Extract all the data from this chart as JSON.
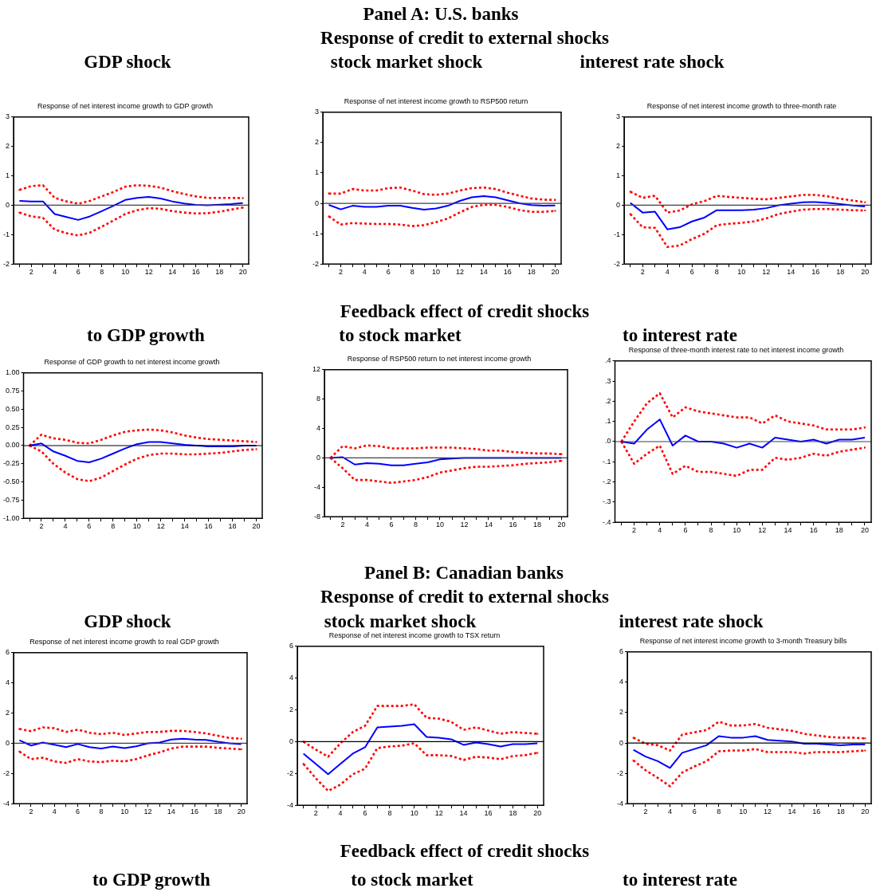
{
  "chart_data": [
    {
      "type": "other",
      "title": "Panel A: U.S. banks",
      "subtitle": "Response of credit to external shocks"
    },
    {
      "type": "line",
      "title": "GDP shock",
      "subtitle": "Response of net interest income growth to GDP growth",
      "categories": [
        null,
        "2",
        null,
        "4",
        null,
        "6",
        null,
        "8",
        null,
        "10",
        null,
        "12",
        null,
        "14",
        null,
        "16",
        null,
        "18",
        null,
        "20"
      ],
      "ylim": [
        -2,
        3
      ],
      "yticks": [
        -2,
        -1,
        0,
        1,
        2,
        3
      ],
      "grid": false,
      "legend": false,
      "marker": "none",
      "ref_lines": [
        {
          "axis": "y",
          "value": 0,
          "color": "#404040"
        }
      ],
      "series": [
        {
          "color": "#0000ff",
          "line_style": "solid",
          "values": [
            0.15,
            0.13,
            0.13,
            -0.3,
            -0.4,
            -0.5,
            -0.38,
            -0.2,
            -0.02,
            0.18,
            0.25,
            0.28,
            0.23,
            0.13,
            0.06,
            0.01,
            0,
            0.02,
            0.04,
            0.07
          ]
        },
        {
          "color": "#ff0000",
          "line_style": "dotted",
          "values": [
            0.52,
            0.65,
            0.68,
            0.25,
            0.13,
            0.05,
            0.15,
            0.3,
            0.45,
            0.63,
            0.68,
            0.66,
            0.6,
            0.48,
            0.38,
            0.3,
            0.25,
            0.25,
            0.25,
            0.24
          ]
        },
        {
          "color": "#ff0000",
          "line_style": "dotted",
          "values": [
            -0.25,
            -0.38,
            -0.43,
            -0.83,
            -0.95,
            -1.03,
            -0.93,
            -0.73,
            -0.52,
            -0.3,
            -0.17,
            -0.1,
            -0.12,
            -0.2,
            -0.25,
            -0.28,
            -0.27,
            -0.22,
            -0.15,
            -0.08
          ]
        }
      ]
    },
    {
      "type": "line",
      "title": "stock market shock",
      "subtitle": "Response of net interest income growth to RSP500 return",
      "categories": [
        null,
        "2",
        null,
        "4",
        null,
        "6",
        null,
        "8",
        null,
        "10",
        null,
        "12",
        null,
        "14",
        null,
        "16",
        null,
        "18",
        null,
        "20"
      ],
      "ylim": [
        -2,
        3
      ],
      "yticks": [
        -2,
        -1,
        0,
        1,
        2,
        3
      ],
      "grid": false,
      "legend": false,
      "marker": "none",
      "ref_lines": [
        {
          "axis": "y",
          "value": 0,
          "color": "#404040"
        }
      ],
      "series": [
        {
          "color": "#0000ff",
          "line_style": "solid",
          "values": [
            -0.05,
            -0.2,
            -0.08,
            -0.12,
            -0.12,
            -0.08,
            -0.08,
            -0.15,
            -0.21,
            -0.17,
            -0.08,
            0.08,
            0.2,
            0.24,
            0.2,
            0.1,
            0,
            -0.06,
            -0.08,
            -0.07
          ]
        },
        {
          "color": "#ff0000",
          "line_style": "dotted",
          "values": [
            0.32,
            0.32,
            0.47,
            0.42,
            0.42,
            0.5,
            0.52,
            0.42,
            0.3,
            0.28,
            0.32,
            0.42,
            0.5,
            0.52,
            0.47,
            0.35,
            0.25,
            0.16,
            0.12,
            0.11
          ]
        },
        {
          "color": "#ff0000",
          "line_style": "dotted",
          "values": [
            -0.43,
            -0.7,
            -0.65,
            -0.67,
            -0.68,
            -0.68,
            -0.7,
            -0.75,
            -0.72,
            -0.62,
            -0.5,
            -0.3,
            -0.12,
            -0.05,
            -0.05,
            -0.12,
            -0.22,
            -0.28,
            -0.28,
            -0.25
          ]
        }
      ]
    },
    {
      "type": "line",
      "title": "interest rate shock",
      "subtitle": "Response of net interest income growth to three-month rate",
      "categories": [
        null,
        "2",
        null,
        "4",
        null,
        "6",
        null,
        "8",
        null,
        "10",
        null,
        "12",
        null,
        "14",
        null,
        "16",
        null,
        "18",
        null,
        "20"
      ],
      "ylim": [
        -2,
        3
      ],
      "yticks": [
        -2,
        -1,
        0,
        1,
        2,
        3
      ],
      "grid": false,
      "legend": false,
      "marker": "none",
      "ref_lines": [
        {
          "axis": "y",
          "value": 0,
          "color": "#404040"
        }
      ],
      "series": [
        {
          "color": "#0000ff",
          "line_style": "solid",
          "values": [
            0.08,
            -0.25,
            -0.22,
            -0.82,
            -0.75,
            -0.55,
            -0.42,
            -0.17,
            -0.17,
            -0.17,
            -0.15,
            -0.1,
            0,
            0.05,
            0.1,
            0.11,
            0.08,
            0.04,
            -0.01,
            -0.04
          ]
        },
        {
          "color": "#ff0000",
          "line_style": "dotted",
          "values": [
            0.46,
            0.25,
            0.32,
            -0.25,
            -0.18,
            0.03,
            0.14,
            0.32,
            0.28,
            0.25,
            0.22,
            0.2,
            0.25,
            0.3,
            0.35,
            0.35,
            0.3,
            0.22,
            0.16,
            0.1
          ]
        },
        {
          "color": "#ff0000",
          "line_style": "dotted",
          "values": [
            -0.3,
            -0.75,
            -0.77,
            -1.42,
            -1.37,
            -1.15,
            -0.97,
            -0.68,
            -0.63,
            -0.6,
            -0.55,
            -0.45,
            -0.3,
            -0.22,
            -0.15,
            -0.13,
            -0.13,
            -0.15,
            -0.17,
            -0.18
          ]
        }
      ]
    },
    {
      "type": "other",
      "title": "Feedback effect of credit shocks"
    },
    {
      "type": "line",
      "title": "to GDP growth",
      "subtitle": "Response of GDP growth to net interest income growth",
      "categories": [
        null,
        "2",
        null,
        "4",
        null,
        "6",
        null,
        "8",
        null,
        "10",
        null,
        "12",
        null,
        "14",
        null,
        "16",
        null,
        "18",
        null,
        "20"
      ],
      "ylim": [
        -1,
        1
      ],
      "yticks": [
        {
          "value": -1,
          "label": "-1.00"
        },
        {
          "value": -0.75,
          "label": "-0.75"
        },
        {
          "value": -0.5,
          "label": "-0.50"
        },
        {
          "value": -0.25,
          "label": "-0.25"
        },
        {
          "value": 0,
          "label": "0.00"
        },
        {
          "value": 0.25,
          "label": "0.25"
        },
        {
          "value": 0.5,
          "label": "0.50"
        },
        {
          "value": 0.75,
          "label": "0.75"
        },
        {
          "value": 1,
          "label": "1.00"
        }
      ],
      "grid": false,
      "legend": false,
      "marker": "none",
      "ref_lines": [
        {
          "axis": "y",
          "value": 0,
          "color": "#000000"
        }
      ],
      "series": [
        {
          "color": "#0000ff",
          "line_style": "solid",
          "values": [
            0,
            0.03,
            -0.08,
            -0.14,
            -0.21,
            -0.23,
            -0.18,
            -0.11,
            -0.04,
            0.02,
            0.05,
            0.05,
            0.03,
            0.01,
            0,
            -0.01,
            -0.01,
            -0.01,
            0,
            0
          ]
        },
        {
          "color": "#ff0000",
          "line_style": "dotted",
          "values": [
            0,
            0.15,
            0.1,
            0.08,
            0.04,
            0.03,
            0.08,
            0.14,
            0.19,
            0.21,
            0.22,
            0.21,
            0.18,
            0.14,
            0.11,
            0.09,
            0.08,
            0.07,
            0.06,
            0.05
          ]
        },
        {
          "color": "#ff0000",
          "line_style": "dotted",
          "values": [
            0,
            -0.08,
            -0.25,
            -0.37,
            -0.46,
            -0.49,
            -0.44,
            -0.35,
            -0.26,
            -0.18,
            -0.13,
            -0.11,
            -0.11,
            -0.12,
            -0.12,
            -0.11,
            -0.1,
            -0.08,
            -0.06,
            -0.05
          ]
        }
      ]
    },
    {
      "type": "line",
      "title": "to stock market",
      "subtitle": "Response of RSP500 return to net interest income growth",
      "categories": [
        null,
        "2",
        null,
        "4",
        null,
        "6",
        null,
        "8",
        null,
        "10",
        null,
        "12",
        null,
        "14",
        null,
        "16",
        null,
        "18",
        null,
        "20"
      ],
      "ylim": [
        -8,
        12
      ],
      "yticks": [
        -8,
        -4,
        0,
        4,
        8,
        12
      ],
      "grid": false,
      "legend": false,
      "marker": "none",
      "ref_lines": [
        {
          "axis": "y",
          "value": 0,
          "color": "#404040"
        }
      ],
      "series": [
        {
          "color": "#0000ff",
          "line_style": "solid",
          "values": [
            0,
            0.1,
            -0.9,
            -0.7,
            -0.8,
            -1,
            -1,
            -0.8,
            -0.6,
            -0.2,
            -0.1,
            0,
            0,
            0,
            0,
            0,
            0,
            0,
            0,
            0
          ]
        },
        {
          "color": "#ff0000",
          "line_style": "dotted",
          "values": [
            0,
            1.6,
            1.3,
            1.7,
            1.6,
            1.3,
            1.3,
            1.3,
            1.4,
            1.4,
            1.4,
            1.3,
            1.2,
            1,
            1,
            0.8,
            0.7,
            0.6,
            0.6,
            0.5
          ]
        },
        {
          "color": "#ff0000",
          "line_style": "dotted",
          "values": [
            0,
            -1.4,
            -3,
            -3,
            -3.2,
            -3.4,
            -3.2,
            -3,
            -2.6,
            -2,
            -1.7,
            -1.4,
            -1.2,
            -1.2,
            -1.1,
            -1,
            -0.8,
            -0.7,
            -0.6,
            -0.4
          ]
        }
      ]
    },
    {
      "type": "line",
      "title": "to interest rate",
      "subtitle": "Response of three-month interest rate to net interest income growth",
      "categories": [
        null,
        "2",
        null,
        "4",
        null,
        "6",
        null,
        "8",
        null,
        "10",
        null,
        "12",
        null,
        "14",
        null,
        "16",
        null,
        "18",
        null,
        "20"
      ],
      "ylim": [
        -0.4,
        0.4
      ],
      "yticks": [
        {
          "value": -0.4,
          "label": "-.4"
        },
        {
          "value": -0.3,
          "label": "-.3"
        },
        {
          "value": -0.2,
          "label": "-.2"
        },
        {
          "value": -0.1,
          "label": "-.1"
        },
        {
          "value": 0,
          "label": ".0"
        },
        {
          "value": 0.1,
          "label": ".1"
        },
        {
          "value": 0.2,
          "label": ".2"
        },
        {
          "value": 0.3,
          "label": ".3"
        },
        {
          "value": 0.4,
          "label": ".4"
        }
      ],
      "grid": false,
      "legend": false,
      "marker": "none",
      "ref_lines": [
        {
          "axis": "y",
          "value": 0,
          "color": "#404040"
        }
      ],
      "series": [
        {
          "color": "#0000ff",
          "line_style": "solid",
          "values": [
            0,
            -0.01,
            0.06,
            0.11,
            -0.02,
            0.03,
            0,
            0,
            -0.01,
            -0.03,
            -0.01,
            -0.03,
            0.02,
            0.01,
            0,
            0.01,
            -0.01,
            0.01,
            0.01,
            0.02
          ]
        },
        {
          "color": "#ff0000",
          "line_style": "dotted",
          "values": [
            0,
            0.1,
            0.19,
            0.24,
            0.12,
            0.17,
            0.15,
            0.14,
            0.13,
            0.12,
            0.12,
            0.09,
            0.13,
            0.1,
            0.09,
            0.08,
            0.06,
            0.06,
            0.06,
            0.07
          ]
        },
        {
          "color": "#ff0000",
          "line_style": "dotted",
          "values": [
            0,
            -0.11,
            -0.06,
            -0.02,
            -0.16,
            -0.12,
            -0.15,
            -0.15,
            -0.16,
            -0.17,
            -0.14,
            -0.14,
            -0.08,
            -0.09,
            -0.08,
            -0.06,
            -0.07,
            -0.05,
            -0.04,
            -0.03
          ]
        }
      ]
    },
    {
      "type": "other",
      "title": "Panel B: Canadian banks",
      "subtitle": "Response of credit to external shocks"
    },
    {
      "type": "line",
      "title": "GDP shock",
      "subtitle": "Response of net interest income growth to real GDP growth",
      "categories": [
        null,
        "2",
        null,
        "4",
        null,
        "6",
        null,
        "8",
        null,
        "10",
        null,
        "12",
        null,
        "14",
        null,
        "16",
        null,
        "18",
        null,
        "20"
      ],
      "ylim": [
        -4,
        6
      ],
      "yticks": [
        -4,
        -2,
        0,
        2,
        4,
        6
      ],
      "grid": false,
      "legend": false,
      "marker": "none",
      "ref_lines": [
        {
          "axis": "y",
          "value": 0,
          "color": "#404040"
        }
      ],
      "series": [
        {
          "color": "#0000ff",
          "line_style": "solid",
          "values": [
            0.2,
            -0.15,
            0.05,
            -0.1,
            -0.25,
            -0.05,
            -0.25,
            -0.35,
            -0.22,
            -0.32,
            -0.2,
            0,
            0.05,
            0.25,
            0.3,
            0.25,
            0.22,
            0.1,
            0,
            -0.05
          ]
        },
        {
          "color": "#ff0000",
          "line_style": "dotted",
          "values": [
            0.95,
            0.8,
            1.05,
            1,
            0.75,
            0.9,
            0.7,
            0.6,
            0.7,
            0.55,
            0.65,
            0.75,
            0.75,
            0.82,
            0.82,
            0.75,
            0.65,
            0.5,
            0.35,
            0.3
          ]
        },
        {
          "color": "#ff0000",
          "line_style": "dotted",
          "values": [
            -0.55,
            -1.05,
            -0.95,
            -1.2,
            -1.3,
            -1.05,
            -1.2,
            -1.25,
            -1.15,
            -1.2,
            -1.05,
            -0.8,
            -0.6,
            -0.35,
            -0.22,
            -0.22,
            -0.22,
            -0.3,
            -0.35,
            -0.4
          ]
        }
      ]
    },
    {
      "type": "line",
      "title": "stock market shock",
      "subtitle": "Response of net interest income growth to TSX return",
      "categories": [
        null,
        "2",
        null,
        "4",
        null,
        "6",
        null,
        "8",
        null,
        "10",
        null,
        "12",
        null,
        "14",
        null,
        "16",
        null,
        "18",
        null,
        "20"
      ],
      "ylim": [
        -4,
        6
      ],
      "yticks": [
        -4,
        -2,
        0,
        2,
        4,
        6
      ],
      "grid": false,
      "legend": false,
      "marker": "none",
      "ref_lines": [
        {
          "axis": "y",
          "value": 0,
          "color": "#000000"
        }
      ],
      "series": [
        {
          "color": "#0000ff",
          "line_style": "solid",
          "values": [
            -0.75,
            -1.4,
            -2.05,
            -1.4,
            -0.75,
            -0.35,
            0.9,
            0.95,
            1,
            1.1,
            0.3,
            0.25,
            0.15,
            -0.2,
            -0.05,
            -0.15,
            -0.3,
            -0.15,
            -0.15,
            -0.1
          ]
        },
        {
          "color": "#ff0000",
          "line_style": "dotted",
          "values": [
            0,
            -0.5,
            -0.95,
            -0.1,
            0.6,
            1,
            2.25,
            2.25,
            2.25,
            2.35,
            1.5,
            1.45,
            1.25,
            0.75,
            0.9,
            0.7,
            0.5,
            0.6,
            0.55,
            0.5
          ]
        },
        {
          "color": "#ff0000",
          "line_style": "dotted",
          "values": [
            -1.4,
            -2.3,
            -3.1,
            -2.7,
            -2.05,
            -1.7,
            -0.4,
            -0.3,
            -0.25,
            -0.1,
            -0.85,
            -0.85,
            -0.9,
            -1.15,
            -0.95,
            -1,
            -1.1,
            -0.9,
            -0.85,
            -0.7
          ]
        }
      ]
    },
    {
      "type": "line",
      "title": "interest rate shock",
      "subtitle": "Response of net interest income growth to 3-month Treasury bills",
      "categories": [
        null,
        "2",
        null,
        "4",
        null,
        "6",
        null,
        "8",
        null,
        "10",
        null,
        "12",
        null,
        "14",
        null,
        "16",
        null,
        "18",
        null,
        "20"
      ],
      "ylim": [
        -4,
        6
      ],
      "yticks": [
        -4,
        -2,
        0,
        2,
        4,
        6
      ],
      "grid": false,
      "legend": false,
      "marker": "none",
      "ref_lines": [
        {
          "axis": "y",
          "value": 0,
          "color": "#000000"
        }
      ],
      "series": [
        {
          "color": "#0000ff",
          "line_style": "solid",
          "values": [
            -0.45,
            -0.9,
            -1.2,
            -1.65,
            -0.65,
            -0.4,
            -0.15,
            0.45,
            0.35,
            0.35,
            0.45,
            0.2,
            0.15,
            0.1,
            -0.05,
            -0.05,
            -0.1,
            -0.15,
            -0.1,
            -0.1
          ]
        },
        {
          "color": "#ff0000",
          "line_style": "dotted",
          "values": [
            0.35,
            -0.05,
            -0.15,
            -0.5,
            0.55,
            0.7,
            0.85,
            1.4,
            1.15,
            1.15,
            1.25,
            1,
            0.9,
            0.8,
            0.6,
            0.5,
            0.4,
            0.35,
            0.35,
            0.3
          ]
        },
        {
          "color": "#ff0000",
          "line_style": "dotted",
          "values": [
            -1.15,
            -1.8,
            -2.3,
            -2.85,
            -1.95,
            -1.55,
            -1.2,
            -0.55,
            -0.5,
            -0.5,
            -0.4,
            -0.6,
            -0.6,
            -0.6,
            -0.7,
            -0.6,
            -0.6,
            -0.6,
            -0.55,
            -0.5
          ]
        }
      ]
    },
    {
      "type": "other",
      "title": "Feedback effect of credit shocks",
      "annotations": [
        "to GDP growth",
        "to stock market",
        "to interest rate"
      ]
    }
  ]
}
